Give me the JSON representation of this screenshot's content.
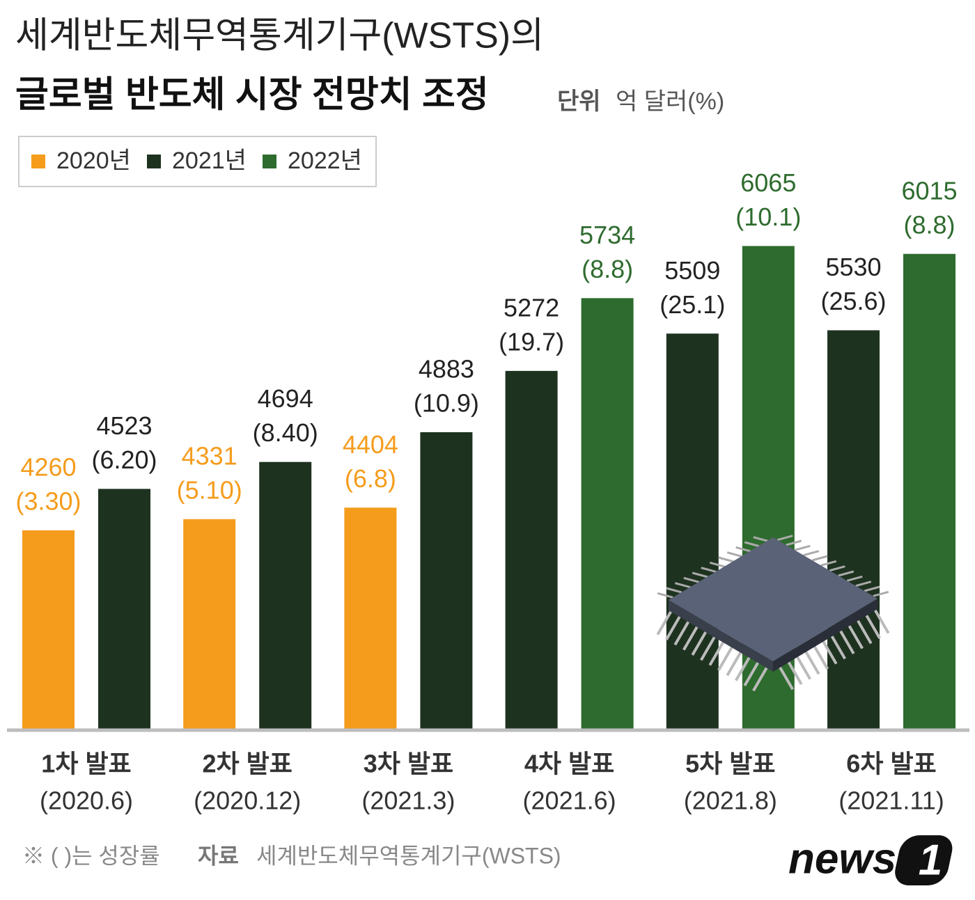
{
  "chart_data": {
    "type": "bar",
    "title": "세계반도체무역통계기구(WSTS)의",
    "subtitle": "글로벌 반도체 시장 전망치 조정",
    "unit_label": "단위",
    "unit": "억 달러(%)",
    "categories": [
      "1차 발표",
      "2차 발표",
      "3차 발표",
      "4차 발표",
      "5차 발표",
      "6차 발표"
    ],
    "category_dates": [
      "(2020.6)",
      "(2020.12)",
      "(2021.3)",
      "(2021.6)",
      "(2021.8)",
      "(2021.11)"
    ],
    "series": [
      {
        "name": "2020년",
        "color": "#f59c1c",
        "values": [
          4260,
          4331,
          4404,
          null,
          null,
          null
        ],
        "growth_labels": [
          "(3.30)",
          "(5.10)",
          "(6.8)",
          null,
          null,
          null
        ]
      },
      {
        "name": "2021년",
        "color": "#1e3220",
        "values": [
          4523,
          4694,
          4883,
          5272,
          5509,
          5530
        ],
        "growth_labels": [
          "(6.20)",
          "(8.40)",
          "(10.9)",
          "(19.7)",
          "(25.1)",
          "(25.6)"
        ]
      },
      {
        "name": "2022년",
        "color": "#2e6b2e",
        "values": [
          null,
          null,
          null,
          5734,
          6065,
          6015
        ],
        "growth_labels": [
          null,
          null,
          null,
          "(8.8)",
          "(10.1)",
          "(8.8)"
        ]
      }
    ],
    "ylim": [
      3000,
      6500
    ],
    "note": "※ ( )는 성장률",
    "source_label": "자료",
    "source": "세계반도체무역통계기구(WSTS)",
    "logo": "news",
    "logo_mark": "1"
  }
}
